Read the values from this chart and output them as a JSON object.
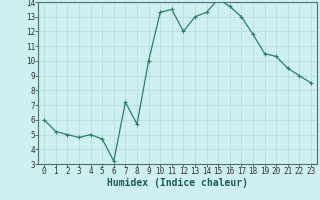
{
  "x": [
    0,
    1,
    2,
    3,
    4,
    5,
    6,
    7,
    8,
    9,
    10,
    11,
    12,
    13,
    14,
    15,
    16,
    17,
    18,
    19,
    20,
    21,
    22,
    23
  ],
  "y": [
    6.0,
    5.2,
    5.0,
    4.8,
    5.0,
    4.7,
    3.2,
    7.2,
    5.7,
    10.0,
    13.3,
    13.5,
    12.0,
    13.0,
    13.3,
    14.2,
    13.7,
    13.0,
    11.8,
    10.5,
    10.3,
    9.5,
    9.0,
    8.5
  ],
  "line_color": "#2e7d6e",
  "marker": "+",
  "marker_size": 3,
  "bg_color": "#cff0f0",
  "grid_color": "#b8dede",
  "xlabel": "Humidex (Indice chaleur)",
  "xlim": [
    -0.5,
    23.5
  ],
  "ylim": [
    3,
    14
  ],
  "yticks": [
    3,
    4,
    5,
    6,
    7,
    8,
    9,
    10,
    11,
    12,
    13,
    14
  ],
  "xticks": [
    0,
    1,
    2,
    3,
    4,
    5,
    6,
    7,
    8,
    9,
    10,
    11,
    12,
    13,
    14,
    15,
    16,
    17,
    18,
    19,
    20,
    21,
    22,
    23
  ],
  "tick_fontsize": 5.5,
  "xlabel_fontsize": 7,
  "xlabel_color": "#1a5a5a",
  "line_width": 0.9
}
